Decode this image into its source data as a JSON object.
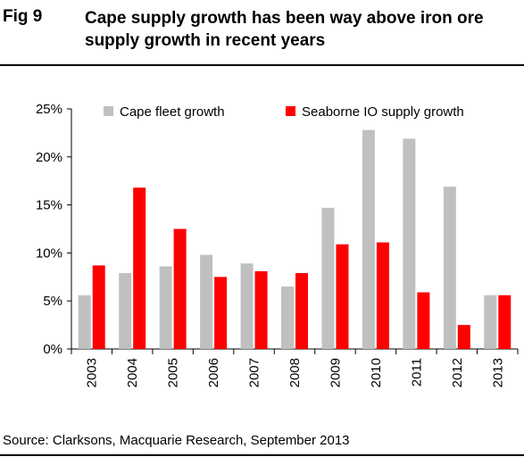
{
  "header": {
    "fig_label": "Fig 9",
    "title": "Cape supply growth has been way above iron ore supply growth in recent years"
  },
  "footer": {
    "source": "Source: Clarksons, Macquarie Research, September 2013"
  },
  "chart_data": {
    "type": "bar",
    "title": "",
    "xlabel": "",
    "ylabel": "",
    "categories": [
      "2003",
      "2004",
      "2005",
      "2006",
      "2007",
      "2008",
      "2009",
      "2010",
      "2011",
      "2012",
      "2013"
    ],
    "series": [
      {
        "name": "Cape fleet growth",
        "color": "#c0c0c0",
        "values": [
          5.6,
          7.9,
          8.6,
          9.8,
          8.9,
          6.5,
          14.7,
          22.8,
          21.9,
          16.9,
          5.6
        ]
      },
      {
        "name": "Seaborne IO supply growth",
        "color": "#ff0000",
        "values": [
          8.7,
          16.8,
          12.5,
          7.5,
          8.1,
          7.9,
          10.9,
          11.1,
          5.9,
          2.5,
          5.6
        ]
      }
    ],
    "ylim": [
      0,
      25
    ],
    "yticks": [
      0,
      5,
      10,
      15,
      20,
      25
    ],
    "ytick_labels": [
      "0%",
      "5%",
      "10%",
      "15%",
      "20%",
      "25%"
    ],
    "legend_position": "top",
    "grid": false
  }
}
